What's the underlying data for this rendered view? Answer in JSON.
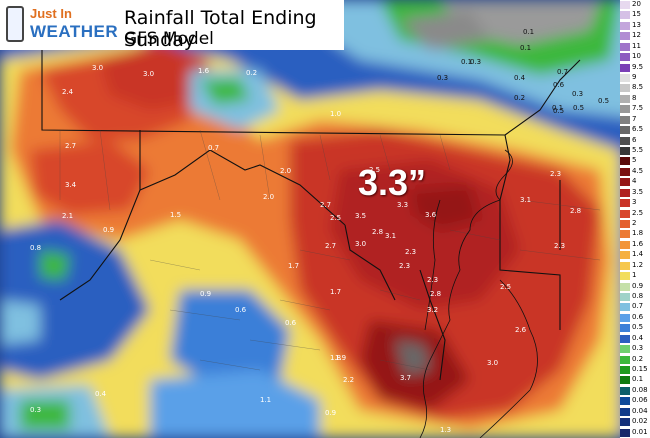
{
  "header": {
    "logo_line1": "Just In",
    "logo_line2": "WEATHER",
    "title_line1": "Rainfall Total Ending Sunday",
    "title_line2": "GFS Model"
  },
  "headline_value": "3.3”",
  "legend": {
    "labels": [
      "20",
      "15",
      "13",
      "12",
      "11",
      "10",
      "9.5",
      "9",
      "8.5",
      "8",
      "7.5",
      "7",
      "6.5",
      "6",
      "5.5",
      "5",
      "4.5",
      "4",
      "3.5",
      "3",
      "2.5",
      "2",
      "1.8",
      "1.6",
      "1.4",
      "1.2",
      "1",
      "0.9",
      "0.8",
      "0.7",
      "0.6",
      "0.5",
      "0.4",
      "0.3",
      "0.2",
      "0.15",
      "0.1",
      "0.08",
      "0.06",
      "0.04",
      "0.02",
      "0.01"
    ],
    "colors": [
      "#e7d9ef",
      "#d5c0e6",
      "#c3a6dc",
      "#b18cd3",
      "#9f73c9",
      "#8d5ac0",
      "#7b40b6",
      "#e0e0e0",
      "#c8c8c8",
      "#b0b0b0",
      "#989898",
      "#808080",
      "#686868",
      "#505050",
      "#383838",
      "#5a0a0a",
      "#7a1010",
      "#951818",
      "#b02020",
      "#c93428",
      "#d8462c",
      "#e4602f",
      "#ec7a34",
      "#f2953a",
      "#f5b041",
      "#f6c74c",
      "#f2dd5c",
      "#c5e0a8",
      "#9fd2c8",
      "#7fc0e0",
      "#5aa0e8",
      "#3b7fd8",
      "#2b5fc0",
      "#6fd06f",
      "#3cb83c",
      "#1e9a1e",
      "#0f7a0f",
      "#0d5e6a",
      "#0f4a9a",
      "#103a8a",
      "#14307a",
      "#18286a"
    ]
  },
  "map_values": [
    "3.0",
    "3.0",
    "1.6",
    "0.2",
    "2.4",
    "2.7",
    "3.4",
    "2.1",
    "0.9",
    "0.8",
    "1.5",
    "2.0",
    "2.0",
    "1.7",
    "0.7",
    "1.0",
    "2.5",
    "2.7",
    "2.5",
    "3.5",
    "3.3",
    "3.6",
    "2.7",
    "3.0",
    "2.8",
    "3.1",
    "3.1",
    "2.3",
    "2.8",
    "2.3",
    "2.3",
    "1.7",
    "0.9",
    "0.6",
    "0.6",
    "1.8",
    "2.3",
    "2.3",
    "2.8",
    "3.2",
    "2.5",
    "2.6",
    "1.9",
    "3.0",
    "2.2",
    "3.7",
    "0.9",
    "1.1",
    "0.3",
    "0.4",
    "1.3",
    "0.1",
    "0.3",
    "0.3",
    "0.2",
    "0.1",
    "0.5",
    "0.7",
    "0.4",
    "0.6",
    "0.5",
    "0.5",
    "0.1",
    "0.1",
    "0.3"
  ]
}
